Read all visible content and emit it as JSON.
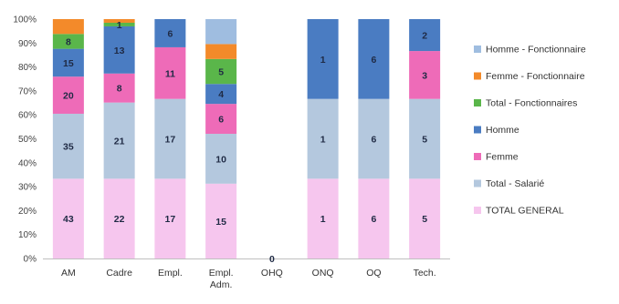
{
  "chart_data": {
    "type": "bar",
    "stacked": "percent",
    "title": "",
    "xlabel": "",
    "ylabel": "",
    "ylim": [
      0,
      100
    ],
    "yticks": [
      "0%",
      "10%",
      "20%",
      "30%",
      "40%",
      "50%",
      "60%",
      "70%",
      "80%",
      "90%",
      "100%"
    ],
    "grid": false,
    "legend_position": "right",
    "categories": [
      "AM",
      "Cadre",
      "Empl.",
      "Empl.\nAdm.",
      "OHQ",
      "ONQ",
      "OQ",
      "Tech."
    ],
    "category_label_lines": [
      [
        "AM"
      ],
      [
        "Cadre"
      ],
      [
        "Empl."
      ],
      [
        "Empl.",
        "Adm."
      ],
      [
        "OHQ"
      ],
      [
        "ONQ"
      ],
      [
        "OQ"
      ],
      [
        "Tech."
      ]
    ],
    "series": [
      {
        "name": "TOTAL GENERAL",
        "color": "#f6c6ee",
        "values": [
          43,
          22,
          17,
          15,
          0,
          1,
          6,
          5
        ],
        "shown_labels": [
          43,
          22,
          17,
          15,
          null,
          1,
          6,
          5
        ]
      },
      {
        "name": "Total - Salarié",
        "color": "#b4c8de",
        "values": [
          35,
          21,
          17,
          10,
          0,
          1,
          6,
          5
        ],
        "shown_labels": [
          35,
          21,
          17,
          10,
          null,
          1,
          6,
          5
        ]
      },
      {
        "name": "Femme",
        "color": "#ee6bb8",
        "values": [
          20,
          8,
          11,
          6,
          0,
          0,
          0,
          3
        ],
        "shown_labels": [
          20,
          8,
          11,
          6,
          null,
          null,
          null,
          3
        ]
      },
      {
        "name": "Homme",
        "color": "#4a7cc2",
        "values": [
          15,
          13,
          6,
          4,
          0,
          1,
          6,
          2
        ],
        "shown_labels": [
          15,
          13,
          6,
          4,
          null,
          1,
          6,
          2
        ]
      },
      {
        "name": "Total - Fonctionnaires",
        "color": "#5ab64a",
        "values": [
          8,
          1,
          0,
          5,
          0,
          0,
          0,
          0
        ],
        "shown_labels": [
          8,
          1,
          null,
          5,
          null,
          null,
          null,
          null
        ]
      },
      {
        "name": "Femme - Fonctionnaire",
        "color": "#f38a2a",
        "values": [
          8,
          1,
          0,
          3,
          0,
          0,
          0,
          0
        ],
        "shown_labels": [
          null,
          null,
          null,
          null,
          null,
          null,
          null,
          null
        ]
      },
      {
        "name": "Homme - Fonctionnaire",
        "color": "#9fbde0",
        "values": [
          0,
          0,
          0,
          5,
          0,
          0,
          0,
          0
        ],
        "shown_labels": [
          null,
          null,
          null,
          null,
          null,
          null,
          null,
          null
        ]
      }
    ],
    "zero_marker": {
      "category": "OHQ",
      "label": "0"
    }
  }
}
